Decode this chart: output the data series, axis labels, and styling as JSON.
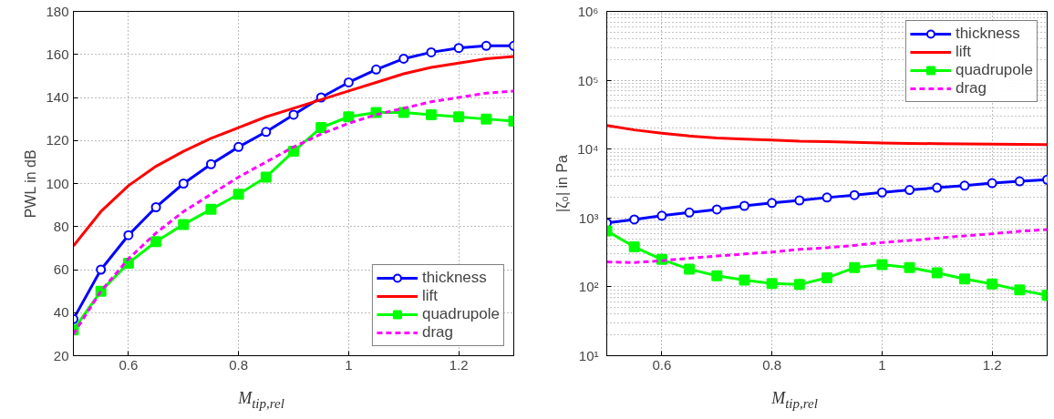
{
  "chart_data": [
    {
      "type": "line",
      "xlabel": "M$_{tip,rel}$",
      "ylabel": "PWL in dB",
      "x": [
        0.5,
        0.55,
        0.6,
        0.65,
        0.7,
        0.75,
        0.8,
        0.85,
        0.9,
        0.95,
        1.0,
        1.05,
        1.1,
        1.15,
        1.2,
        1.25,
        1.3
      ],
      "xlim": [
        0.5,
        1.3
      ],
      "xticks": [
        0.6,
        0.8,
        1,
        1.2
      ],
      "ylim": [
        20,
        180
      ],
      "yticks": [
        20,
        40,
        60,
        80,
        100,
        120,
        140,
        160,
        180
      ],
      "grid": true,
      "legend": "bottom right",
      "series": [
        {
          "name": "thickness",
          "color": "#0000ff",
          "marker": "circle",
          "line_style": "solid",
          "values": [
            37,
            60,
            76,
            89,
            100,
            109,
            117,
            124,
            132,
            140,
            147,
            153,
            158,
            161,
            163,
            164,
            164
          ]
        },
        {
          "name": "lift",
          "color": "#ff0000",
          "marker": "none",
          "line_style": "solid",
          "values": [
            71,
            87,
            99,
            108,
            115,
            121,
            126,
            131,
            135,
            139,
            143,
            147,
            151,
            154,
            156,
            158,
            159
          ]
        },
        {
          "name": "quadrupole",
          "color": "#00ff00",
          "marker": "square",
          "line_style": "solid",
          "values": [
            32,
            50,
            63,
            73,
            81,
            88,
            95,
            103,
            115,
            126,
            131,
            133,
            133,
            132,
            131,
            130,
            129
          ]
        },
        {
          "name": "drag",
          "color": "#ff00ff",
          "marker": "none",
          "line_style": "dashed",
          "values": [
            30,
            50,
            65,
            77,
            87,
            95,
            103,
            110,
            117,
            123,
            128,
            132,
            135,
            138,
            140,
            142,
            143
          ]
        }
      ]
    },
    {
      "type": "line",
      "xlabel": "M$_{tip,rel}$",
      "ylabel": "|ζ₀| in Pa",
      "log": "y",
      "x": [
        0.5,
        0.55,
        0.6,
        0.65,
        0.7,
        0.75,
        0.8,
        0.85,
        0.9,
        0.95,
        1.0,
        1.05,
        1.1,
        1.15,
        1.2,
        1.25,
        1.3
      ],
      "xlim": [
        0.5,
        1.3
      ],
      "xticks": [
        0.6,
        0.8,
        1,
        1.2
      ],
      "ylim": [
        10,
        1000000
      ],
      "yticks": [
        {
          "value": 10,
          "label": "10¹"
        },
        {
          "value": 100,
          "label": "10²"
        },
        {
          "value": 1000,
          "label": "10³"
        },
        {
          "value": 10000,
          "label": "10⁴"
        },
        {
          "value": 100000,
          "label": "10⁵"
        },
        {
          "value": 1000000,
          "label": "10⁶"
        }
      ],
      "grid": true,
      "legend": "top right",
      "series": [
        {
          "name": "thickness",
          "color": "#0000ff",
          "marker": "circle",
          "line_style": "solid",
          "values": [
            850,
            950,
            1080,
            1200,
            1330,
            1500,
            1650,
            1800,
            1980,
            2150,
            2350,
            2550,
            2750,
            2950,
            3200,
            3400,
            3600
          ]
        },
        {
          "name": "lift",
          "color": "#ff0000",
          "marker": "none",
          "line_style": "solid",
          "values": [
            22000,
            19000,
            17000,
            15500,
            14500,
            14000,
            13500,
            13000,
            12800,
            12500,
            12300,
            12100,
            12000,
            11900,
            11800,
            11700,
            11600
          ]
        },
        {
          "name": "quadrupole",
          "color": "#00ff00",
          "marker": "square",
          "line_style": "solid",
          "values": [
            650,
            380,
            250,
            180,
            145,
            125,
            112,
            108,
            135,
            190,
            210,
            190,
            160,
            130,
            110,
            90,
            75
          ]
        },
        {
          "name": "drag",
          "color": "#ff00ff",
          "marker": "none",
          "line_style": "dashed",
          "values": [
            230,
            225,
            240,
            260,
            280,
            300,
            320,
            350,
            370,
            400,
            440,
            470,
            510,
            550,
            590,
            640,
            680
          ]
        }
      ]
    }
  ]
}
